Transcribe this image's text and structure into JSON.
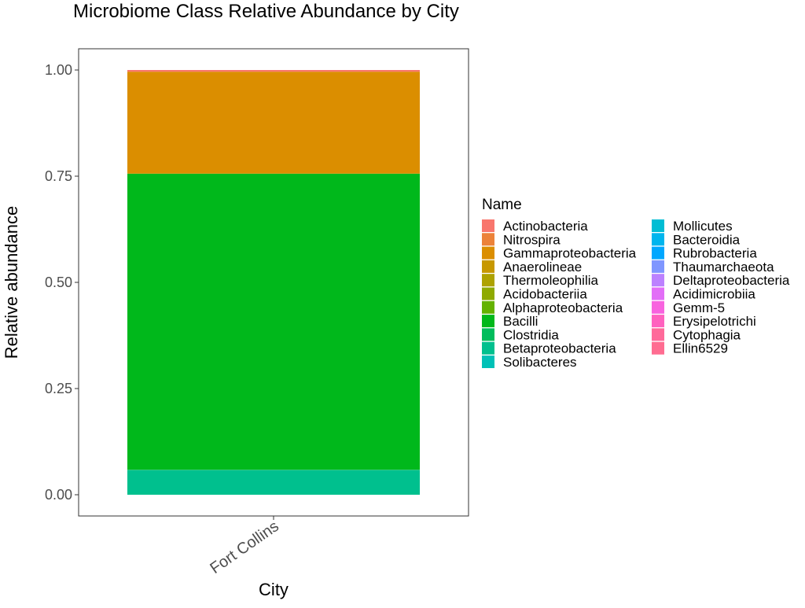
{
  "chart_data": {
    "type": "bar",
    "title": "Microbiome Class Relative Abundance by City",
    "xlabel": "City",
    "ylabel": "Relative abundance",
    "categories": [
      "Fort Collins"
    ],
    "ylim": [
      0,
      1.05
    ],
    "yticks": [
      "0.00",
      "0.25",
      "0.50",
      "0.75",
      "1.00"
    ],
    "stacked": true,
    "legend_title": "Name",
    "legend_position": "right",
    "grid": false,
    "series": [
      {
        "name": "Actinobacteria",
        "color": "#F8766D",
        "values": [
          0.004
        ]
      },
      {
        "name": "Nitrospira",
        "color": "#EC8239",
        "values": [
          0.0
        ]
      },
      {
        "name": "Gammaproteobacteria",
        "color": "#DB8E00",
        "values": [
          0.24
        ]
      },
      {
        "name": "Anaerolineae",
        "color": "#C79800",
        "values": [
          0.0
        ]
      },
      {
        "name": "Thermoleophilia",
        "color": "#AEA200",
        "values": [
          0.0
        ]
      },
      {
        "name": "Acidobacteriia",
        "color": "#8FAA00",
        "values": [
          0.0
        ]
      },
      {
        "name": "Alphaproteobacteria",
        "color": "#64B200",
        "values": [
          0.0
        ]
      },
      {
        "name": "Bacilli",
        "color": "#00B81B",
        "values": [
          0.697
        ]
      },
      {
        "name": "Clostridia",
        "color": "#00BD5C",
        "values": [
          0.001
        ]
      },
      {
        "name": "Betaproteobacteria",
        "color": "#00C08E",
        "values": [
          0.058
        ]
      },
      {
        "name": "Solibacteres",
        "color": "#00C1B7",
        "values": [
          0.0
        ]
      },
      {
        "name": "Mollicutes",
        "color": "#00BDD4",
        "values": [
          0.0
        ]
      },
      {
        "name": "Bacteroidia",
        "color": "#00B5EE",
        "values": [
          0.0
        ]
      },
      {
        "name": "Rubrobacteria",
        "color": "#00A7FF",
        "values": [
          0.0
        ]
      },
      {
        "name": "Thaumarchaeota",
        "color": "#7F96FF",
        "values": [
          0.0
        ]
      },
      {
        "name": "Deltaproteobacteria",
        "color": "#BC81FF",
        "values": [
          0.0
        ]
      },
      {
        "name": "Acidimicrobiia",
        "color": "#E26EF7",
        "values": [
          0.0
        ]
      },
      {
        "name": "Gemm-5",
        "color": "#F863DF",
        "values": [
          0.0
        ]
      },
      {
        "name": "Erysipelotrichi",
        "color": "#FF62BF",
        "values": [
          0.0
        ]
      },
      {
        "name": "Cytophagia",
        "color": "#FF6A9A",
        "values": [
          0.0
        ]
      },
      {
        "name": "Ellin6529",
        "color": "#FF6C91",
        "values": [
          0.0
        ]
      }
    ]
  }
}
